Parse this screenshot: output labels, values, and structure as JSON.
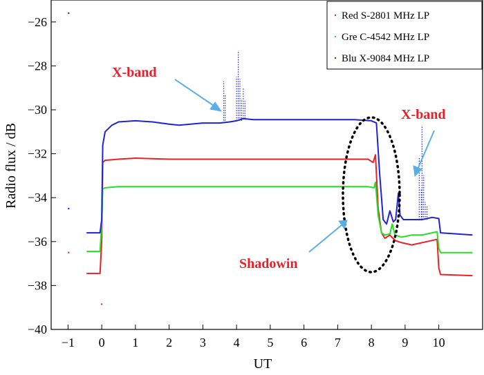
{
  "chart_data": {
    "type": "line",
    "xlabel": "UT",
    "ylabel": "Radio flux / dB",
    "xlim": [
      -1.5,
      11.3
    ],
    "ylim": [
      -40,
      -25
    ],
    "xticks": [
      -1,
      0,
      1,
      2,
      3,
      4,
      5,
      6,
      7,
      8,
      9,
      10
    ],
    "yticks": [
      -40,
      -38,
      -36,
      -34,
      -32,
      -30,
      -28,
      -26
    ],
    "xtick_labels": [
      "−1",
      "0",
      "1",
      "2",
      "3",
      "4",
      "5",
      "6",
      "7",
      "8",
      "9",
      "10"
    ],
    "ytick_labels": [
      "−40",
      "−38",
      "−36",
      "−34",
      "−32",
      "−30",
      "−28",
      "−26"
    ],
    "grid": false,
    "legend_position": "top-right",
    "series": [
      {
        "name": "Red S-2801 MHz LP",
        "color": "#e8202a",
        "x": [
          -0.45,
          -0.1,
          -0.05,
          0.0,
          0.03,
          0.1,
          0.5,
          1,
          2,
          3,
          4,
          5,
          6,
          7,
          7.9,
          8.05,
          8.12,
          8.2,
          8.3,
          8.4,
          8.55,
          8.7,
          8.9,
          9.2,
          9.5,
          9.8,
          9.95,
          10.0,
          10.05,
          11.0
        ],
        "y": [
          -37.45,
          -37.45,
          -37.45,
          -36.0,
          -32.4,
          -32.3,
          -32.25,
          -32.2,
          -32.25,
          -32.25,
          -32.25,
          -32.25,
          -32.25,
          -32.25,
          -32.25,
          -32.4,
          -32.05,
          -34.5,
          -35.6,
          -35.85,
          -35.7,
          -35.95,
          -36.05,
          -36.15,
          -36.05,
          -35.95,
          -35.9,
          -37.2,
          -37.5,
          -37.55
        ]
      },
      {
        "name": "Gre C-4542 MHz LP",
        "color": "#22e022",
        "x": [
          -0.45,
          -0.1,
          -0.05,
          0.0,
          0.03,
          0.1,
          0.5,
          1,
          2,
          3,
          4,
          5,
          6,
          7,
          7.9,
          8.08,
          8.12,
          8.2,
          8.3,
          8.4,
          8.55,
          8.62,
          8.7,
          8.9,
          9.2,
          9.5,
          9.8,
          9.95,
          10.0,
          10.05,
          11.0
        ],
        "y": [
          -36.45,
          -36.45,
          -36.45,
          -35.2,
          -33.6,
          -33.55,
          -33.5,
          -33.5,
          -33.5,
          -33.5,
          -33.5,
          -33.5,
          -33.5,
          -33.5,
          -33.5,
          -33.55,
          -33.3,
          -34.8,
          -35.6,
          -35.7,
          -35.65,
          -35.2,
          -35.7,
          -35.8,
          -35.7,
          -35.7,
          -35.6,
          -35.55,
          -36.3,
          -36.5,
          -36.5
        ]
      },
      {
        "name": "Blu X-9084 MHz LP",
        "color": "#1f22d6",
        "x": [
          -0.45,
          -0.1,
          -0.05,
          0.0,
          0.03,
          0.1,
          0.3,
          0.5,
          1,
          1.5,
          2,
          2.3,
          3,
          3.5,
          3.8,
          4,
          4.2,
          4.5,
          5,
          5.5,
          6,
          6.5,
          7,
          7.5,
          8,
          8.15,
          8.25,
          8.35,
          8.45,
          8.55,
          8.65,
          8.72,
          8.8,
          8.85,
          8.95,
          9.2,
          9.5,
          9.8,
          10.0,
          10.05,
          11.0
        ],
        "y": [
          -35.6,
          -35.6,
          -35.6,
          -35.0,
          -31.6,
          -31.0,
          -30.7,
          -30.55,
          -30.5,
          -30.55,
          -30.65,
          -30.7,
          -30.6,
          -30.6,
          -30.55,
          -30.5,
          -30.4,
          -30.45,
          -30.45,
          -30.45,
          -30.45,
          -30.45,
          -30.45,
          -30.45,
          -30.5,
          -30.6,
          -33.0,
          -35.0,
          -35.2,
          -34.6,
          -35.1,
          -35.0,
          -33.8,
          -34.8,
          -35.0,
          -35.0,
          -35.0,
          -34.9,
          -34.95,
          -35.6,
          -35.7
        ]
      }
    ],
    "annotations": [
      {
        "text": "X-band",
        "color": "#e8202a"
      },
      {
        "text": "X-band",
        "color": "#e8202a"
      },
      {
        "text": "Shadowin",
        "color": "#e8202a"
      }
    ]
  }
}
